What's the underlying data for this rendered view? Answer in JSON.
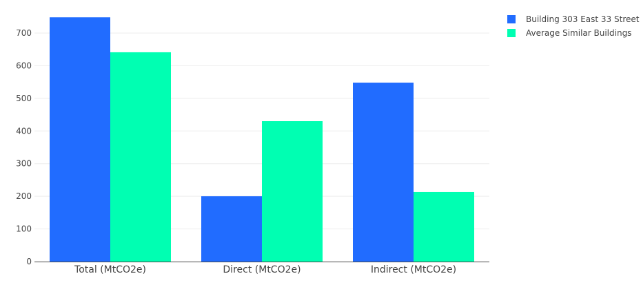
{
  "chart_data": {
    "type": "bar",
    "categories": [
      "Total (MtCO2e)",
      "Direct (MtCO2e)",
      "Indirect (MtCO2e)"
    ],
    "series": [
      {
        "name": "Building 303 East 33 Street",
        "values": [
          748,
          200,
          548
        ],
        "color": "#216cff"
      },
      {
        "name": "Average Similar Buildings",
        "values": [
          641,
          430,
          213
        ],
        "color": "#00ffb2"
      }
    ],
    "yticks": [
      0,
      100,
      200,
      300,
      400,
      500,
      600,
      700
    ],
    "ylim": [
      0,
      780
    ],
    "grid": true,
    "legend_position": "top-right"
  }
}
